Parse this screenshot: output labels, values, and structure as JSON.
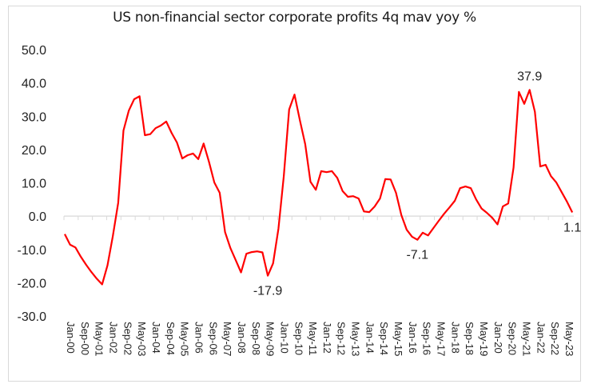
{
  "chart_data": {
    "type": "line",
    "title": "US non-financial sector corporate profits 4q mav yoy %",
    "xlabel": "",
    "ylabel": "",
    "ylim": [
      -30,
      50
    ],
    "yticks": [
      50,
      40,
      30,
      20,
      10,
      0,
      -10,
      -20,
      -30
    ],
    "ytick_labels": [
      "50.0",
      "40.0",
      "30.0",
      "20.0",
      "10.0",
      "0.0",
      "-10.0",
      "-20.0",
      "-30.0"
    ],
    "xtick_labels": [
      "Jan-00",
      "Sep-00",
      "May-01",
      "Jan-02",
      "Sep-02",
      "May-03",
      "Jan-04",
      "Sep-04",
      "May-05",
      "Jan-06",
      "Sep-06",
      "May-07",
      "Jan-08",
      "Sep-08",
      "May-09",
      "Jan-10",
      "Sep-10",
      "May-11",
      "Jan-12",
      "Sep-12",
      "May-13",
      "Jan-14",
      "Sep-14",
      "May-15",
      "Jan-16",
      "Sep-16",
      "May-17",
      "Jan-18",
      "Sep-18",
      "May-19",
      "Jan-20",
      "Sep-20",
      "May-21",
      "Jan-22",
      "Sep-22",
      "May-23"
    ],
    "xtick_interval_months": 8,
    "frequency": "quarterly",
    "start": "Jan-00",
    "grid": false,
    "legend": "none",
    "series": [
      {
        "name": "US non-financial corporate profits 4q mav yoy %",
        "color": "#ff0000",
        "values": [
          -5.4,
          -8.6,
          -9.4,
          -12.2,
          -14.6,
          -16.8,
          -18.8,
          -20.5,
          -14.8,
          -6.0,
          4.0,
          25.7,
          31.7,
          35.1,
          36.0,
          24.3,
          24.6,
          26.4,
          27.2,
          28.4,
          25.0,
          22.1,
          17.3,
          18.3,
          18.8,
          17.1,
          21.8,
          16.3,
          10.1,
          7.0,
          -4.8,
          -9.6,
          -13.2,
          -16.9,
          -11.3,
          -10.8,
          -10.6,
          -10.9,
          -17.9,
          -14.2,
          -3.8,
          12.0,
          32.0,
          36.5,
          28.8,
          21.6,
          10.3,
          7.9,
          13.5,
          13.2,
          13.5,
          11.5,
          7.5,
          5.8,
          6.0,
          5.3,
          1.4,
          1.2,
          2.9,
          5.3,
          11.1,
          11.0,
          7.0,
          0.3,
          -4.1,
          -6.2,
          -7.1,
          -5.0,
          -5.8,
          -3.6,
          -1.4,
          0.7,
          2.6,
          4.6,
          8.4,
          8.9,
          8.4,
          5.0,
          2.3,
          1.0,
          -0.5,
          -2.5,
          2.9,
          3.8,
          14.6,
          37.3,
          33.7,
          37.9,
          31.3,
          14.9,
          15.4,
          12.0,
          10.1,
          7.2,
          4.3,
          1.1
        ]
      }
    ],
    "annotations": [
      {
        "label": "37.9",
        "point_index": 87
      },
      {
        "label": "-17.9",
        "point_index": 38
      },
      {
        "label": "-7.1",
        "point_index": 66
      },
      {
        "label": "1.1",
        "point_index": 95
      }
    ]
  }
}
